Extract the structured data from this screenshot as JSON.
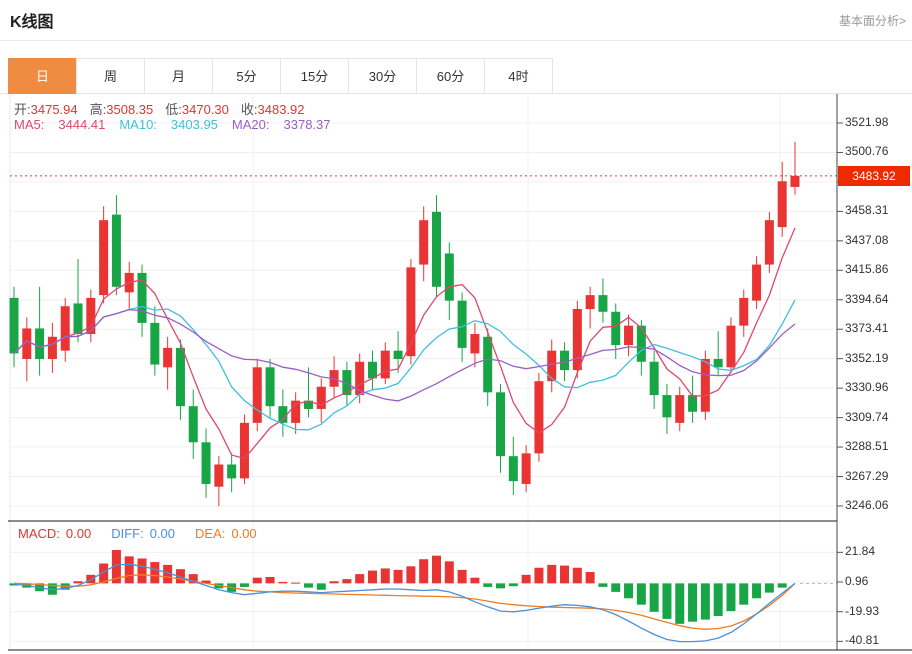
{
  "page": {
    "title": "K线图",
    "link": "基本面分析>"
  },
  "tabs": {
    "items": [
      "日",
      "周",
      "月",
      "5分",
      "15分",
      "30分",
      "60分",
      "4时"
    ],
    "active_index": 0
  },
  "ohlc": {
    "items": [
      {
        "label": "开:",
        "value": "3475.94"
      },
      {
        "label": "高:",
        "value": "3508.35"
      },
      {
        "label": "低:",
        "value": "3470.30"
      },
      {
        "label": "收:",
        "value": "3483.92"
      }
    ]
  },
  "ma_row": {
    "items": [
      {
        "label": "MA5:",
        "value": "3444.41",
        "color": "#e0476f"
      },
      {
        "label": "MA10:",
        "value": "3403.95",
        "color": "#3fc0dc"
      },
      {
        "label": "MA20:",
        "value": "3378.37",
        "color": "#9a5fc5"
      }
    ]
  },
  "macd_row": {
    "items": [
      {
        "label": "MACD:",
        "value": "0.00",
        "color": "#e03434"
      },
      {
        "label": "DIFF:",
        "value": "0.00",
        "color": "#4a90d9"
      },
      {
        "label": "DEA:",
        "value": "0.00",
        "color": "#ef7d21"
      }
    ]
  },
  "price_line": {
    "value": "3483.92"
  },
  "colors": {
    "up": "#ea3433",
    "down": "#17a546",
    "ma5": "#e0476f",
    "ma10": "#3fc0dc",
    "ma20": "#9a5fc5",
    "diff": "#4a90d9",
    "dea": "#ef7d21",
    "tab_active_bg": "#f08c42",
    "price_tag_bg": "#ee2b00",
    "dotted_line": "#e83232",
    "grid": "#f0f0f0",
    "axis": "#444444",
    "frame": "#1a1a1a",
    "ohlc_value": "#e03434",
    "zero_dash": "#8fbfe8"
  },
  "chart_data": [
    {
      "type": "candlestick",
      "title": "K线图",
      "period": "日",
      "grid": true,
      "legend_position": "none",
      "ohlc_latest": {
        "open": 3475.94,
        "high": 3508.35,
        "low": 3470.3,
        "close": 3483.92
      },
      "ma_latest": {
        "MA5": 3444.41,
        "MA10": 3403.95,
        "MA20": 3378.37
      },
      "ma_periods": [
        5,
        10,
        20
      ],
      "last_price": 3483.92,
      "y_ticks": [
        3521.98,
        3500.76,
        3479.53,
        3458.31,
        3437.08,
        3415.86,
        3394.64,
        3373.41,
        3352.19,
        3330.96,
        3309.74,
        3288.51,
        3267.29,
        3246.06
      ],
      "candles": [
        [
          3396,
          3404,
          3346,
          3356
        ],
        [
          3352,
          3382,
          3336,
          3374
        ],
        [
          3374,
          3404,
          3340,
          3352
        ],
        [
          3352,
          3378,
          3342,
          3368
        ],
        [
          3358,
          3396,
          3350,
          3390
        ],
        [
          3392,
          3424,
          3364,
          3370
        ],
        [
          3370,
          3402,
          3364,
          3396
        ],
        [
          3398,
          3462,
          3392,
          3452
        ],
        [
          3456,
          3470,
          3398,
          3404
        ],
        [
          3400,
          3422,
          3388,
          3414
        ],
        [
          3414,
          3420,
          3368,
          3378
        ],
        [
          3378,
          3390,
          3340,
          3348
        ],
        [
          3346,
          3368,
          3330,
          3360
        ],
        [
          3360,
          3366,
          3308,
          3318
        ],
        [
          3318,
          3330,
          3280,
          3292
        ],
        [
          3292,
          3302,
          3252,
          3262
        ],
        [
          3260,
          3282,
          3246,
          3276
        ],
        [
          3276,
          3284,
          3256,
          3266
        ],
        [
          3266,
          3312,
          3262,
          3306
        ],
        [
          3306,
          3352,
          3300,
          3346
        ],
        [
          3346,
          3352,
          3310,
          3318
        ],
        [
          3318,
          3330,
          3296,
          3306
        ],
        [
          3306,
          3328,
          3298,
          3322
        ],
        [
          3322,
          3346,
          3310,
          3316
        ],
        [
          3316,
          3338,
          3306,
          3332
        ],
        [
          3332,
          3354,
          3324,
          3344
        ],
        [
          3344,
          3350,
          3318,
          3326
        ],
        [
          3326,
          3356,
          3320,
          3350
        ],
        [
          3350,
          3358,
          3330,
          3338
        ],
        [
          3338,
          3364,
          3334,
          3358
        ],
        [
          3358,
          3372,
          3342,
          3352
        ],
        [
          3354,
          3424,
          3348,
          3418
        ],
        [
          3420,
          3462,
          3408,
          3452
        ],
        [
          3458,
          3470,
          3396,
          3404
        ],
        [
          3428,
          3436,
          3380,
          3394
        ],
        [
          3394,
          3400,
          3350,
          3360
        ],
        [
          3356,
          3378,
          3346,
          3370
        ],
        [
          3368,
          3374,
          3318,
          3328
        ],
        [
          3328,
          3334,
          3270,
          3282
        ],
        [
          3282,
          3296,
          3254,
          3264
        ],
        [
          3262,
          3290,
          3256,
          3284
        ],
        [
          3284,
          3342,
          3278,
          3336
        ],
        [
          3336,
          3366,
          3328,
          3358
        ],
        [
          3358,
          3364,
          3336,
          3344
        ],
        [
          3344,
          3394,
          3338,
          3388
        ],
        [
          3388,
          3404,
          3374,
          3398
        ],
        [
          3398,
          3410,
          3378,
          3386
        ],
        [
          3386,
          3392,
          3352,
          3362
        ],
        [
          3362,
          3384,
          3354,
          3376
        ],
        [
          3376,
          3380,
          3340,
          3350
        ],
        [
          3350,
          3358,
          3316,
          3326
        ],
        [
          3326,
          3334,
          3298,
          3310
        ],
        [
          3306,
          3332,
          3300,
          3326
        ],
        [
          3326,
          3340,
          3306,
          3314
        ],
        [
          3314,
          3358,
          3308,
          3352
        ],
        [
          3352,
          3372,
          3340,
          3346
        ],
        [
          3346,
          3382,
          3342,
          3376
        ],
        [
          3376,
          3402,
          3368,
          3396
        ],
        [
          3394,
          3426,
          3388,
          3420
        ],
        [
          3420,
          3458,
          3414,
          3452
        ],
        [
          3447,
          3494,
          3440,
          3480
        ],
        [
          3475.94,
          3508.35,
          3470.3,
          3483.92
        ]
      ]
    },
    {
      "type": "bar",
      "title": "MACD",
      "values_latest": {
        "MACD": 0.0,
        "DIFF": 0.0,
        "DEA": 0.0
      },
      "y_ticks": [
        21.84,
        0.96,
        -19.93,
        -40.81
      ],
      "hist": [
        -1.5,
        -3,
        -5.5,
        -8,
        -4.5,
        1.5,
        6,
        14,
        23.5,
        19,
        17.5,
        15,
        13,
        10,
        6.5,
        2,
        -3.5,
        -6,
        -2.5,
        4,
        4.5,
        1,
        0.5,
        -3,
        -4.5,
        1.5,
        3,
        6.5,
        9,
        10.5,
        9.5,
        12,
        17,
        19.5,
        15.5,
        9.5,
        4,
        -2.5,
        -3.5,
        -2,
        6,
        11,
        13,
        12.5,
        11,
        8,
        -2.5,
        -6,
        -10.5,
        -15,
        -20,
        -25,
        -28.5,
        -27,
        -25.5,
        -23,
        -19.5,
        -15,
        -10.5,
        -6.5,
        -3,
        0
      ],
      "diff": [
        -0.5,
        -1.5,
        -3,
        -4.5,
        -3.5,
        -1.5,
        2.5,
        8,
        13,
        13.5,
        12,
        10,
        7.5,
        4.5,
        1.5,
        -1.5,
        -4.5,
        -6.5,
        -8,
        -7,
        -6,
        -5.5,
        -5.5,
        -6,
        -6.5,
        -6,
        -5.5,
        -5,
        -4.5,
        -4,
        -4,
        -4.5,
        -5,
        -4.5,
        -6,
        -9,
        -13,
        -16.5,
        -19.5,
        -20,
        -19,
        -17.5,
        -16,
        -15,
        -15.5,
        -16.5,
        -18.5,
        -22,
        -26.5,
        -31.5,
        -36,
        -39.5,
        -41,
        -41,
        -40.5,
        -38.5,
        -34.5,
        -28.5,
        -21.5,
        -14,
        -7,
        0
      ],
      "dea": [
        0,
        -0.3,
        -0.8,
        -1.5,
        -2,
        -2,
        -1,
        1,
        3.5,
        5.5,
        6,
        5.5,
        4.5,
        3,
        1.5,
        0,
        -1.5,
        -3,
        -4.5,
        -5.5,
        -6,
        -6.5,
        -6.8,
        -7,
        -7.2,
        -7.5,
        -7.8,
        -8,
        -8.2,
        -8.4,
        -8.6,
        -8.8,
        -9,
        -9.2,
        -9.5,
        -10,
        -11,
        -12.5,
        -14,
        -15,
        -15.8,
        -16.3,
        -16.8,
        -17,
        -17.2,
        -17.5,
        -18,
        -19,
        -20.5,
        -22.5,
        -25,
        -27.5,
        -29.8,
        -31.5,
        -32.3,
        -31.8,
        -30,
        -26.5,
        -21.5,
        -15.5,
        -8.5,
        0
      ]
    }
  ]
}
